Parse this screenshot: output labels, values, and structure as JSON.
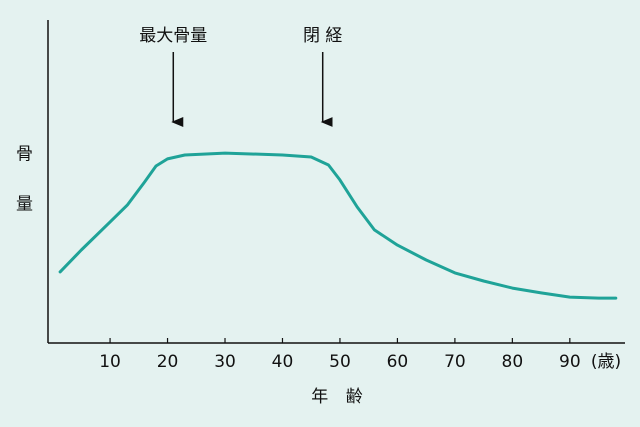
{
  "chart_data": {
    "type": "line",
    "x": [
      1.3,
      5,
      10,
      13,
      16,
      18,
      20,
      23,
      30,
      40,
      45,
      48,
      50,
      53,
      56,
      60,
      65,
      70,
      75,
      80,
      85,
      90,
      95,
      98
    ],
    "values": [
      22,
      28.8,
      37.5,
      42.7,
      49.8,
      54.8,
      57,
      58.2,
      58.8,
      58.2,
      57.6,
      55.1,
      50.5,
      42.1,
      35,
      30.3,
      25.7,
      21.7,
      19.2,
      17,
      15.5,
      14.2,
      13.9,
      13.9
    ],
    "color": "#1fa398",
    "xlim": [
      -0.8,
      99.6
    ],
    "ylim": [
      0,
      100
    ],
    "xticks": [
      10,
      20,
      30,
      40,
      50,
      60,
      70,
      80,
      90
    ],
    "x_unit": "(歳)",
    "xlabel": "年 齢",
    "ylabel": "骨 量",
    "annotations": [
      {
        "text": "最大骨量",
        "x": 21
      },
      {
        "text": "閉 経",
        "x": 47
      }
    ]
  }
}
